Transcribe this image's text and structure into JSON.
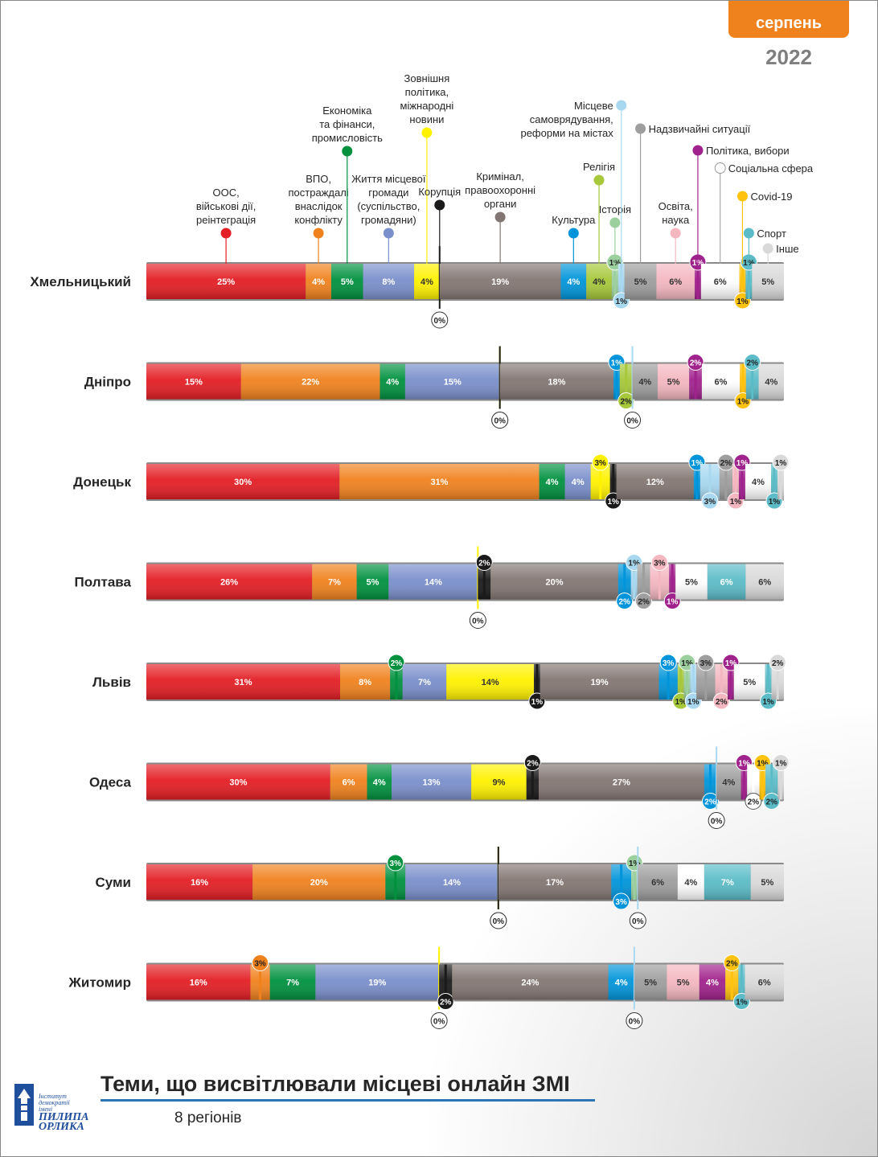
{
  "header": {
    "month": "серпень",
    "year": "2022"
  },
  "footer": {
    "title": "Теми, що висвітлювали місцеві онлайн ЗМІ",
    "subtitle": "8 регіонів"
  },
  "logo": {
    "line1": "Інститут демократії",
    "line2": "імені",
    "line3": "ПИЛИПА",
    "line4": "ОРЛИКА"
  },
  "colors": {
    "oos": "#e31e24",
    "vpo": "#f0821e",
    "econ": "#00913f",
    "hromada": "#7a8fcb",
    "foreign": "#fff200",
    "corruption": "#1a1a1a",
    "crime": "#837672",
    "culture": "#0095da",
    "religion": "#a6c83a",
    "history": "#9bcf9e",
    "selfgov": "#a8d8f0",
    "emergency": "#9e9e9e",
    "education": "#f4b7c0",
    "politics": "#a0228c",
    "social": "#ffffff",
    "covid": "#ffc20e",
    "sport": "#5bbcc8",
    "other": "#d9d9d9"
  },
  "chart_data": {
    "type": "bar",
    "orientation": "horizontal-stacked",
    "unit": "%",
    "categories": [
      {
        "key": "oos",
        "label": "ООС, військові дії, реінтеграція"
      },
      {
        "key": "vpo",
        "label": "ВПО, постраждалі внаслідок конфлікту"
      },
      {
        "key": "econ",
        "label": "Економіка та фінанси, промисловість"
      },
      {
        "key": "hromada",
        "label": "Життя місцевої громади (суспільство, громадяни)"
      },
      {
        "key": "foreign",
        "label": "Зовнішня політика, міжнародні новини"
      },
      {
        "key": "corruption",
        "label": "Корупція"
      },
      {
        "key": "crime",
        "label": "Кримінал, правоохоронні органи"
      },
      {
        "key": "culture",
        "label": "Культура"
      },
      {
        "key": "religion",
        "label": "Релігія"
      },
      {
        "key": "history",
        "label": "Історія"
      },
      {
        "key": "selfgov",
        "label": "Місцеве самоврядування, реформи на містах"
      },
      {
        "key": "emergency",
        "label": "Надзвичайні ситуації"
      },
      {
        "key": "education",
        "label": "Освіта, наука"
      },
      {
        "key": "politics",
        "label": "Політика, вибори"
      },
      {
        "key": "social",
        "label": "Соціальна сфера"
      },
      {
        "key": "covid",
        "label": "Covid-19"
      },
      {
        "key": "sport",
        "label": "Спорт"
      },
      {
        "key": "other",
        "label": "Інше"
      }
    ],
    "legend_lines": {
      "oos": [
        "ООС,",
        "військові дії,",
        "реінтеграція"
      ],
      "vpo": [
        "ВПО,",
        "постраждалі",
        "внаслідок",
        "конфлікту"
      ],
      "econ": [
        "Економіка",
        "та фінанси,",
        "промисловість"
      ],
      "hromada": [
        "Життя місцевої",
        "громади",
        "(суспільство,",
        "громадяни)"
      ],
      "foreign": [
        "Зовнішня",
        "політика,",
        "міжнародні",
        "новини"
      ],
      "corruption": [
        "Корупція"
      ],
      "crime": [
        "Кримінал,",
        "правоохоронні",
        "органи"
      ],
      "culture": [
        "Культура"
      ],
      "religion": [
        "Релігія"
      ],
      "history": [
        "Історія"
      ],
      "selfgov": [
        "Місцеве",
        "самоврядування,",
        "реформи на містах"
      ],
      "emergency": [
        "Надзвичайні ситуації"
      ],
      "education": [
        "Освіта,",
        "наука"
      ],
      "politics": [
        "Політика, вибори"
      ],
      "social": [
        "Соціальна сфера"
      ],
      "covid": [
        "Covid-19"
      ],
      "sport": [
        "Спорт"
      ],
      "other": [
        "Інше"
      ]
    },
    "series": [
      {
        "name": "Хмельницький",
        "values": [
          25,
          4,
          5,
          8,
          4,
          0,
          19,
          4,
          4,
          1,
          1,
          5,
          6,
          1,
          6,
          1,
          1,
          5
        ]
      },
      {
        "name": "Дніпро",
        "values": [
          15,
          22,
          4,
          15,
          0,
          0,
          18,
          1,
          2,
          0,
          0,
          4,
          5,
          2,
          6,
          1,
          2,
          4
        ]
      },
      {
        "name": "Донецьк",
        "values": [
          30,
          31,
          4,
          4,
          3,
          1,
          12,
          1,
          0,
          0,
          3,
          2,
          1,
          1,
          4,
          0,
          1,
          1
        ]
      },
      {
        "name": "Полтава",
        "values": [
          26,
          7,
          5,
          14,
          0,
          2,
          20,
          2,
          0,
          0,
          1,
          2,
          3,
          1,
          5,
          0,
          6,
          6
        ]
      },
      {
        "name": "Львів",
        "values": [
          31,
          8,
          2,
          7,
          14,
          1,
          19,
          3,
          1,
          1,
          1,
          3,
          2,
          1,
          5,
          0,
          1,
          2
        ]
      },
      {
        "name": "Одеса",
        "values": [
          30,
          6,
          4,
          13,
          9,
          2,
          27,
          2,
          0,
          0,
          0,
          4,
          0,
          1,
          2,
          1,
          2,
          1
        ]
      },
      {
        "name": "Суми",
        "values": [
          16,
          20,
          3,
          14,
          0,
          0,
          17,
          3,
          0,
          1,
          0,
          6,
          0,
          0,
          4,
          0,
          7,
          5
        ]
      },
      {
        "name": "Житомир",
        "values": [
          16,
          3,
          7,
          19,
          0,
          2,
          24,
          4,
          0,
          0,
          0,
          5,
          5,
          4,
          0,
          2,
          1,
          6
        ]
      }
    ]
  }
}
